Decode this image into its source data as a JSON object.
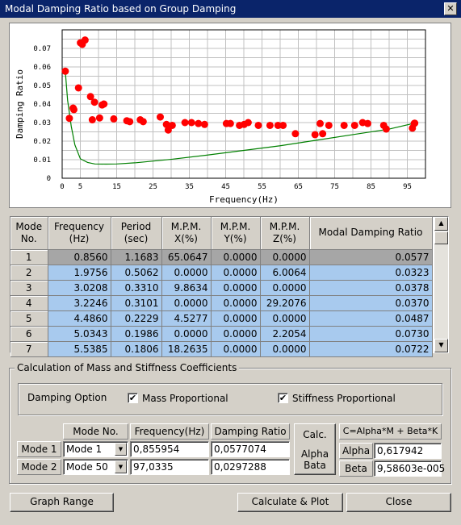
{
  "window": {
    "title": "Modal Damping Ratio based on Group Damping",
    "close_glyph": "✕"
  },
  "chart_data": {
    "type": "scatter",
    "xlabel": "Frequency(Hz)",
    "ylabel": "Damping Ratio",
    "xlim": [
      0,
      100
    ],
    "ylim": [
      0,
      0.08
    ],
    "xticks": [
      0,
      5,
      15,
      25,
      35,
      45,
      55,
      65,
      75,
      85,
      95
    ],
    "xtick_labels": [
      "0",
      "5",
      "15",
      "25",
      "35",
      "45",
      "55",
      "65",
      "75",
      "85",
      "95"
    ],
    "yticks": [
      0,
      0.01,
      0.02,
      0.03,
      0.04,
      0.05,
      0.06,
      0.07
    ],
    "ytick_labels": [
      "0",
      "0.01",
      "0.02",
      "0.03",
      "0.04",
      "0.05",
      "0.06",
      "0.07"
    ],
    "grid": true,
    "point_color": "#ff0000",
    "line_color": "#008000",
    "series": [
      {
        "type": "scatter",
        "x": [
          0.86,
          1.98,
          3.02,
          3.22,
          4.49,
          5.03,
          5.54,
          6.3,
          7.8,
          8.3,
          8.9,
          10.3,
          11.0,
          11.5,
          14.2,
          17.8,
          18.6,
          21.5,
          22.3,
          27.0,
          28.7,
          29.2,
          30.3,
          33.8,
          35.6,
          37.5,
          39.2,
          45.2,
          46.3,
          48.8,
          50.1,
          51.2,
          54.0,
          57.2,
          59.4,
          60.8,
          64.2,
          69.6,
          71.0,
          71.7,
          73.4,
          77.6,
          80.5,
          82.7,
          84.1,
          88.5,
          89.2,
          96.4,
          96.9,
          97.03
        ],
        "y": [
          0.0577,
          0.0323,
          0.0378,
          0.037,
          0.0487,
          0.073,
          0.0722,
          0.0745,
          0.044,
          0.0315,
          0.041,
          0.0325,
          0.0395,
          0.04,
          0.032,
          0.031,
          0.0305,
          0.0315,
          0.0305,
          0.033,
          0.029,
          0.026,
          0.0285,
          0.03,
          0.03,
          0.0295,
          0.029,
          0.0295,
          0.0295,
          0.0285,
          0.029,
          0.03,
          0.0285,
          0.0285,
          0.0285,
          0.0285,
          0.024,
          0.0235,
          0.0295,
          0.024,
          0.0285,
          0.0285,
          0.0285,
          0.03,
          0.0295,
          0.0285,
          0.0265,
          0.027,
          0.0295,
          0.0297
        ]
      },
      {
        "type": "line",
        "x": [
          0.86,
          1.5,
          2.5,
          3.5,
          5,
          7,
          9,
          12,
          15,
          20,
          30,
          40,
          50,
          60,
          70,
          80,
          90,
          97.03
        ],
        "y": [
          0.0577,
          0.042,
          0.028,
          0.018,
          0.0105,
          0.0085,
          0.0077,
          0.0076,
          0.0077,
          0.0083,
          0.0102,
          0.0125,
          0.015,
          0.0175,
          0.0205,
          0.0235,
          0.0265,
          0.0297
        ]
      }
    ]
  },
  "table": {
    "columns": [
      "Mode\nNo.",
      "Frequency\n(Hz)",
      "Period\n(sec)",
      "M.P.M.\nX(%)",
      "M.P.M.\nY(%)",
      "M.P.M.\nZ(%)",
      "Modal Damping Ratio"
    ],
    "rows": [
      [
        "1",
        "0.8560",
        "1.1683",
        "65.0647",
        "0.0000",
        "0.0000",
        "0.0577"
      ],
      [
        "2",
        "1.9756",
        "0.5062",
        "0.0000",
        "0.0000",
        "6.0064",
        "0.0323"
      ],
      [
        "3",
        "3.0208",
        "0.3310",
        "9.8634",
        "0.0000",
        "0.0000",
        "0.0378"
      ],
      [
        "4",
        "3.2246",
        "0.3101",
        "0.0000",
        "0.0000",
        "29.2076",
        "0.0370"
      ],
      [
        "5",
        "4.4860",
        "0.2229",
        "4.5277",
        "0.0000",
        "0.0000",
        "0.0487"
      ],
      [
        "6",
        "5.0343",
        "0.1986",
        "0.0000",
        "0.0000",
        "2.2054",
        "0.0730"
      ],
      [
        "7",
        "5.5385",
        "0.1806",
        "18.2635",
        "0.0000",
        "0.0000",
        "0.0722"
      ]
    ],
    "selected_row": 0,
    "scroll_up": "▲",
    "scroll_down": "▼"
  },
  "coefficients": {
    "group_title": "Calculation of Mass and Stiffness Coefficients",
    "damping_option_label": "Damping Option",
    "mass_proportional": {
      "label": "Mass Proportional",
      "checked": true
    },
    "stiffness_proportional": {
      "label": "Stiffness Proportional",
      "checked": true
    },
    "check_glyph": "✔",
    "headers": {
      "mode_no": "Mode No.",
      "frequency": "Frequency(Hz)",
      "damping_ratio": "Damping Ratio"
    },
    "mode1": {
      "label": "Mode 1",
      "select": "Mode 1",
      "frequency": "0,855954",
      "damping": "0,0577074"
    },
    "mode2": {
      "label": "Mode 2",
      "select": "Mode 50",
      "frequency": "97,0335",
      "damping": "0,0297288"
    },
    "combo_glyph": "▼",
    "calc_button": {
      "line1": "Calc.",
      "line2": "Alpha",
      "line3": "Bata"
    },
    "formula": "C=Alpha*M + Beta*K",
    "alpha": {
      "label": "Alpha",
      "value": "0,617942"
    },
    "beta": {
      "label": "Beta",
      "value": "9,58603e-005"
    }
  },
  "buttons": {
    "graph_range": "Graph Range",
    "calculate_plot": "Calculate & Plot",
    "close": "Close"
  }
}
